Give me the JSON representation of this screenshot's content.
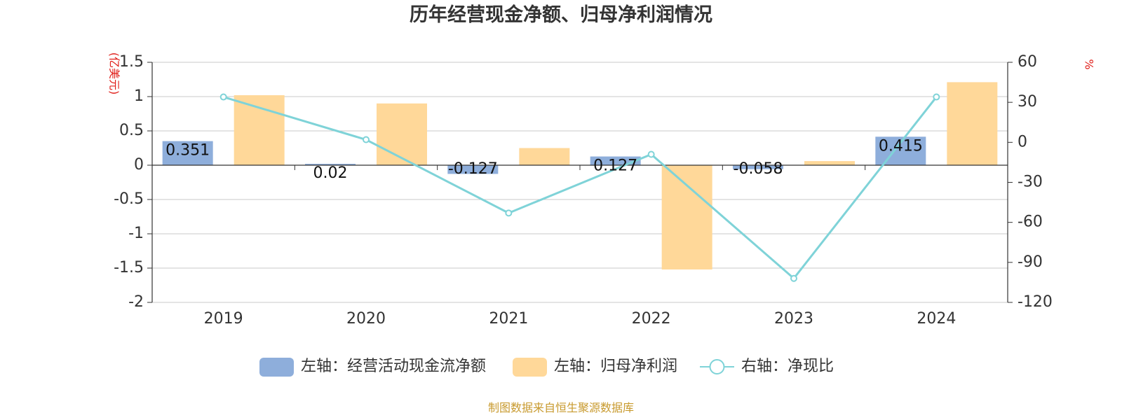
{
  "chart_data": {
    "type": "bar",
    "title": "历年经营现金净额、归母净利润情况",
    "categories": [
      "2019",
      "2020",
      "2021",
      "2022",
      "2023",
      "2024"
    ],
    "series": [
      {
        "name": "左轴：经营活动现金流净额",
        "type": "bar",
        "axis": "left",
        "color": "#8eaedb",
        "values": [
          0.351,
          0.02,
          -0.127,
          0.127,
          -0.058,
          0.415
        ],
        "labels": [
          "0.351",
          "0.02",
          "-0.127",
          "0.127",
          "-0.058",
          "0.415"
        ]
      },
      {
        "name": "左轴：归母净利润",
        "type": "bar",
        "axis": "left",
        "color": "#ffd899",
        "values": [
          1.02,
          0.9,
          0.25,
          -1.52,
          0.06,
          1.21
        ]
      },
      {
        "name": "右轴：净现比",
        "type": "line",
        "axis": "right",
        "color": "#7fd3d8",
        "values": [
          34,
          2,
          -53,
          -9,
          -102,
          34
        ]
      }
    ],
    "left_axis": {
      "unit": "(亿美元)",
      "ylim": [
        -2,
        1.5
      ],
      "ticks": [
        1.5,
        1,
        0.5,
        0,
        -0.5,
        -1,
        -1.5,
        -2
      ],
      "tick_labels": [
        "1.5",
        "1",
        "0.5",
        "0",
        "-0.5",
        "-1",
        "-1.5",
        "-2"
      ]
    },
    "right_axis": {
      "unit": "%",
      "ylim": [
        -120,
        60
      ],
      "ticks": [
        60,
        30,
        0,
        -30,
        -60,
        -90,
        -120
      ],
      "tick_labels": [
        "60",
        "30",
        "0",
        "-30",
        "-60",
        "-90",
        "-120"
      ]
    },
    "grid": true,
    "legend_position": "bottom",
    "source": "制图数据来自恒生聚源数据库"
  }
}
